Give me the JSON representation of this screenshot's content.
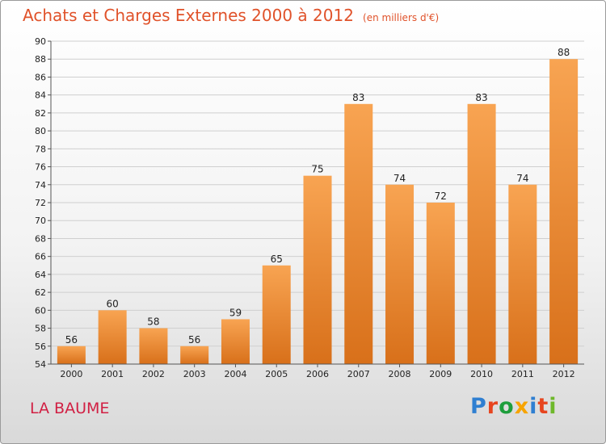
{
  "title": "Achats et Charges Externes 2000 à 2012",
  "unit": "(en milliers d'€)",
  "place": "LA BAUME",
  "logo": {
    "text": "Proxiti",
    "colors": [
      "#2f7fd1",
      "#e7451f",
      "#1e9e3c",
      "#f7a400",
      "#2f7fd1",
      "#e7451f",
      "#6eb82b"
    ]
  },
  "colors": {
    "bar_top": "#f8a452",
    "bar_bottom": "#d8701a",
    "grid": "#cfcfcf"
  },
  "chart_data": {
    "type": "bar",
    "categories": [
      "2000",
      "2001",
      "2002",
      "2003",
      "2004",
      "2005",
      "2006",
      "2007",
      "2008",
      "2009",
      "2010",
      "2011",
      "2012"
    ],
    "values": [
      56,
      60,
      58,
      56,
      59,
      65,
      75,
      83,
      74,
      72,
      83,
      74,
      88
    ],
    "ylim": [
      54,
      90
    ],
    "yticks": [
      54,
      56,
      58,
      60,
      62,
      64,
      66,
      68,
      70,
      72,
      74,
      76,
      78,
      80,
      82,
      84,
      86,
      88,
      90
    ],
    "grid": true
  }
}
